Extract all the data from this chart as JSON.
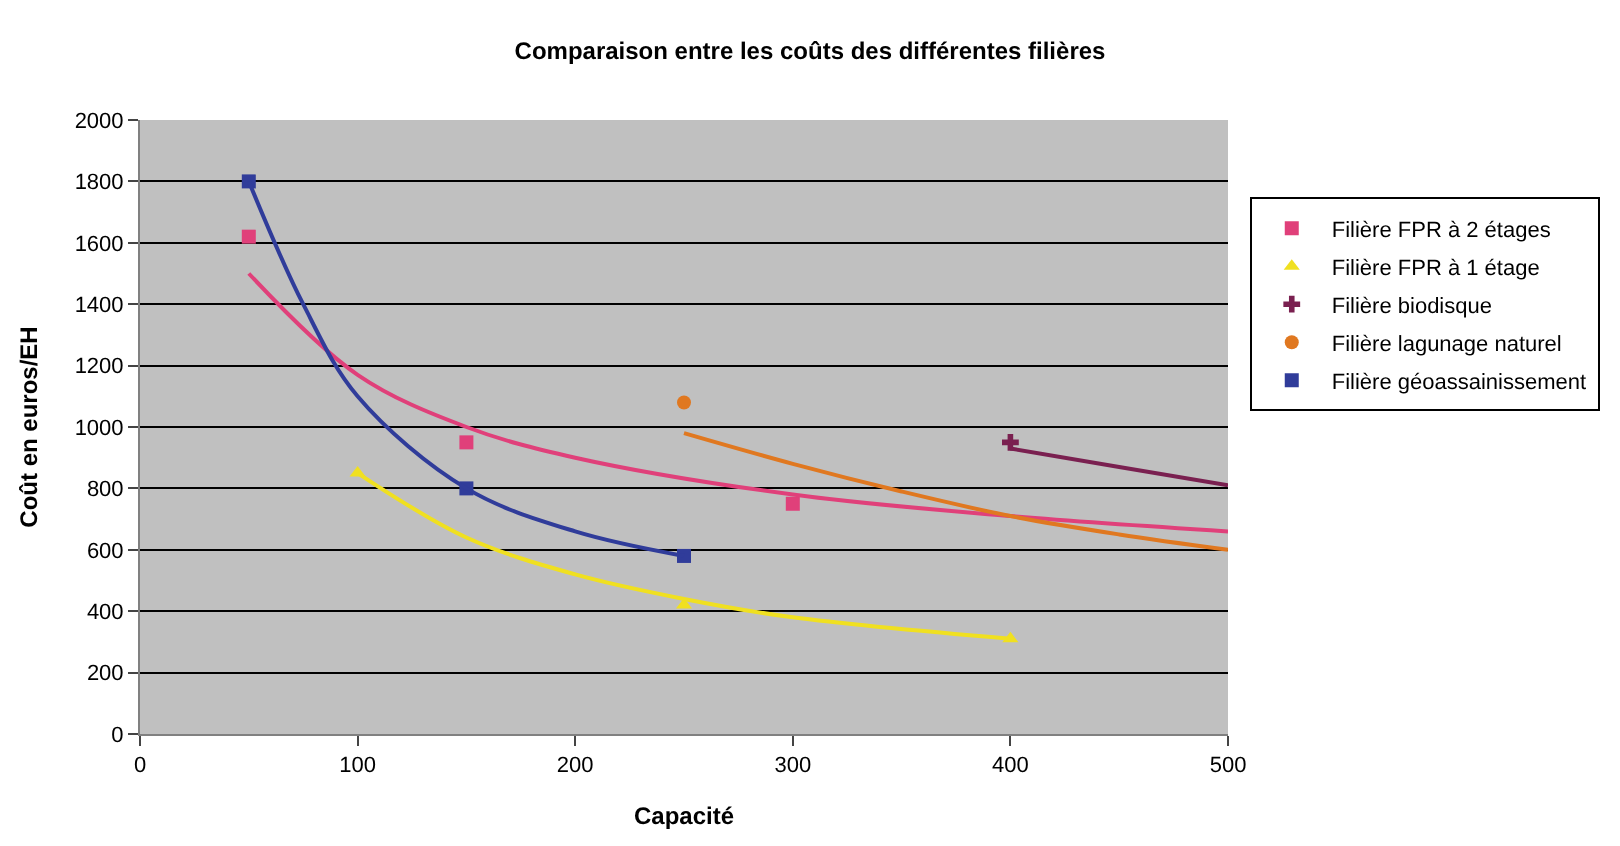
{
  "chart_data": {
    "type": "scatter",
    "title": "Comparaison entre les coûts des différentes filières",
    "xlabel": "Capacité",
    "ylabel": "Coût en euros/EH",
    "xlim": [
      0,
      500
    ],
    "xticks": [
      0,
      100,
      200,
      300,
      400,
      500
    ],
    "ylim": [
      0,
      2000
    ],
    "yticks": [
      0,
      200,
      400,
      600,
      800,
      1000,
      1200,
      1400,
      1600,
      1800,
      2000
    ],
    "grid": "y",
    "legend": "right",
    "series": [
      {
        "name": "Filière FPR à 2 étages",
        "color": "#e0407a",
        "marker": "square",
        "x": [
          50,
          150,
          300
        ],
        "values": [
          1620,
          950,
          750
        ]
      },
      {
        "name": "Filière FPR à 1 étage",
        "color": "#f0e020",
        "marker": "triangle",
        "x": [
          100,
          250,
          400
        ],
        "values": [
          850,
          420,
          310
        ]
      },
      {
        "name": "Filière biodisque",
        "color": "#7a2050",
        "marker": "cross",
        "x": [
          400
        ],
        "values": [
          950
        ]
      },
      {
        "name": "Filière lagunage naturel",
        "color": "#e07820",
        "marker": "circle",
        "x": [
          250
        ],
        "values": [
          1080
        ]
      },
      {
        "name": "Filière géoassainissement",
        "color": "#303c9a",
        "marker": "square",
        "x": [
          50,
          150,
          250
        ],
        "values": [
          1800,
          800,
          580
        ]
      },
      {
        "type": "line",
        "color": "#e0407a",
        "x": [
          50,
          100,
          150,
          200,
          300,
          400,
          500
        ],
        "values": [
          1500,
          1170,
          1000,
          900,
          780,
          710,
          660
        ]
      },
      {
        "type": "line",
        "color": "#f0e020",
        "x": [
          100,
          150,
          200,
          250,
          300,
          400
        ],
        "values": [
          850,
          640,
          520,
          440,
          380,
          310
        ]
      },
      {
        "type": "line",
        "color": "#7a2050",
        "x": [
          400,
          450,
          500
        ],
        "values": [
          930,
          870,
          810
        ]
      },
      {
        "type": "line",
        "color": "#e07820",
        "x": [
          250,
          300,
          350,
          400,
          450,
          500
        ],
        "values": [
          980,
          880,
          790,
          710,
          650,
          600
        ]
      },
      {
        "type": "line",
        "color": "#303c9a",
        "x": [
          50,
          75,
          100,
          150,
          200,
          250
        ],
        "values": [
          1800,
          1400,
          1100,
          800,
          660,
          580
        ]
      }
    ]
  }
}
